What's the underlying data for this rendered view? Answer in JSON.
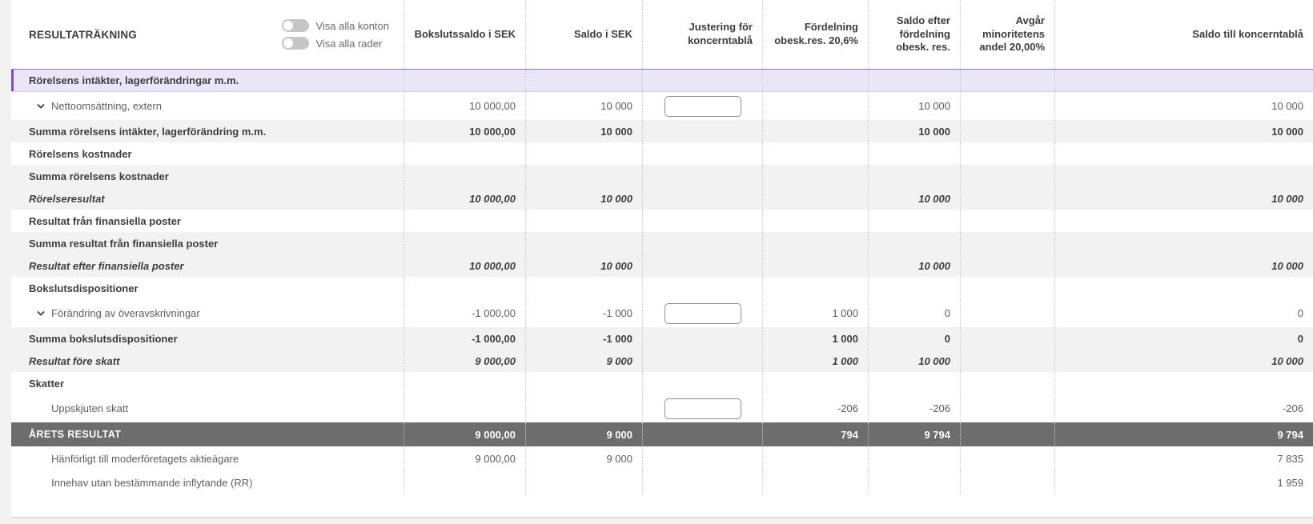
{
  "table": {
    "title": "RESULTATRÄKNING",
    "toggles": [
      {
        "label": "Visa alla konton",
        "state": "off"
      },
      {
        "label": "Visa alla rader",
        "state": "off"
      }
    ],
    "columns": [
      "Bokslutssaldo i SEK",
      "Saldo i SEK",
      "Justering för koncerntablå",
      "Fördelning obesk.res. 20,6%",
      "Saldo efter fördelning obesk. res.",
      "Avgår minoritetens andel 20,00%",
      "Saldo till koncerntablå"
    ],
    "rows": [
      {
        "label": "Rörelsens intäkter, lagerförändringar m.m.",
        "type": "section-purple",
        "chevron": false,
        "input": false,
        "values": [
          "",
          "",
          "",
          "",
          "",
          "",
          ""
        ]
      },
      {
        "label": "Nettoomsättning, extern",
        "type": "account input",
        "chevron": true,
        "input": true,
        "values": [
          "10 000,00",
          "10 000",
          "",
          "",
          "10 000",
          "",
          "10 000"
        ]
      },
      {
        "label": "Summa rörelsens intäkter, lagerförändring m.m.",
        "type": "sum",
        "chevron": false,
        "input": false,
        "values": [
          "10 000,00",
          "10 000",
          "",
          "",
          "10 000",
          "",
          "10 000"
        ]
      },
      {
        "label": "Rörelsens kostnader",
        "type": "section",
        "chevron": false,
        "input": false,
        "values": [
          "",
          "",
          "",
          "",
          "",
          "",
          ""
        ]
      },
      {
        "label": "Summa rörelsens kostnader",
        "type": "sum",
        "chevron": false,
        "input": false,
        "values": [
          "",
          "",
          "",
          "",
          "",
          "",
          ""
        ]
      },
      {
        "label": "Rörelseresultat",
        "type": "result",
        "chevron": false,
        "input": false,
        "values": [
          "10 000,00",
          "10 000",
          "",
          "",
          "10 000",
          "",
          "10 000"
        ]
      },
      {
        "label": "Resultat från finansiella poster",
        "type": "section",
        "chevron": false,
        "input": false,
        "values": [
          "",
          "",
          "",
          "",
          "",
          "",
          ""
        ]
      },
      {
        "label": "Summa resultat från finansiella poster",
        "type": "sum",
        "chevron": false,
        "input": false,
        "values": [
          "",
          "",
          "",
          "",
          "",
          "",
          ""
        ]
      },
      {
        "label": "Resultat efter finansiella poster",
        "type": "result",
        "chevron": false,
        "input": false,
        "values": [
          "10 000,00",
          "10 000",
          "",
          "",
          "10 000",
          "",
          "10 000"
        ]
      },
      {
        "label": "Bokslutsdispositioner",
        "type": "section",
        "chevron": false,
        "input": false,
        "values": [
          "",
          "",
          "",
          "",
          "",
          "",
          ""
        ]
      },
      {
        "label": "Förändring av överavskrivningar",
        "type": "account input",
        "chevron": true,
        "input": true,
        "values": [
          "-1 000,00",
          "-1 000",
          "",
          "1 000",
          "0",
          "",
          "0"
        ]
      },
      {
        "label": "Summa bokslutsdispositioner",
        "type": "sum",
        "chevron": false,
        "input": false,
        "values": [
          "-1 000,00",
          "-1 000",
          "",
          "1 000",
          "0",
          "",
          "0"
        ]
      },
      {
        "label": "Resultat före skatt",
        "type": "result",
        "chevron": false,
        "input": false,
        "values": [
          "9 000,00",
          "9 000",
          "",
          "1 000",
          "10 000",
          "",
          "10 000"
        ]
      },
      {
        "label": "Skatter",
        "type": "section",
        "chevron": false,
        "input": false,
        "values": [
          "",
          "",
          "",
          "",
          "",
          "",
          ""
        ]
      },
      {
        "label": "Uppskjuten skatt",
        "type": "child input",
        "chevron": false,
        "input": true,
        "values": [
          "",
          "",
          "",
          "-206",
          "-206",
          "",
          "-206"
        ]
      },
      {
        "label": "ÅRETS RESULTAT",
        "type": "grand",
        "chevron": false,
        "input": false,
        "values": [
          "9 000,00",
          "9 000",
          "",
          "794",
          "9 794",
          "",
          "9 794"
        ]
      },
      {
        "label": "Hänförligt till moderföretagets aktieägare",
        "type": "child last-group",
        "chevron": false,
        "input": false,
        "values": [
          "9 000,00",
          "9 000",
          "",
          "",
          "",
          "",
          "7 835"
        ]
      },
      {
        "label": "Innehav utan bestämmande inflytande (RR)",
        "type": "child last-group",
        "chevron": false,
        "input": false,
        "values": [
          "",
          "",
          "",
          "",
          "",
          "",
          "1 959"
        ]
      }
    ],
    "colors": {
      "accent_purple": "#7a4fc0",
      "section_purple_bg": "#ebe6f7",
      "alt_row_bg": "#f2f2f2",
      "grand_total_bg": "#6d6d6d",
      "toggle_off": "#c6c6c6"
    }
  }
}
